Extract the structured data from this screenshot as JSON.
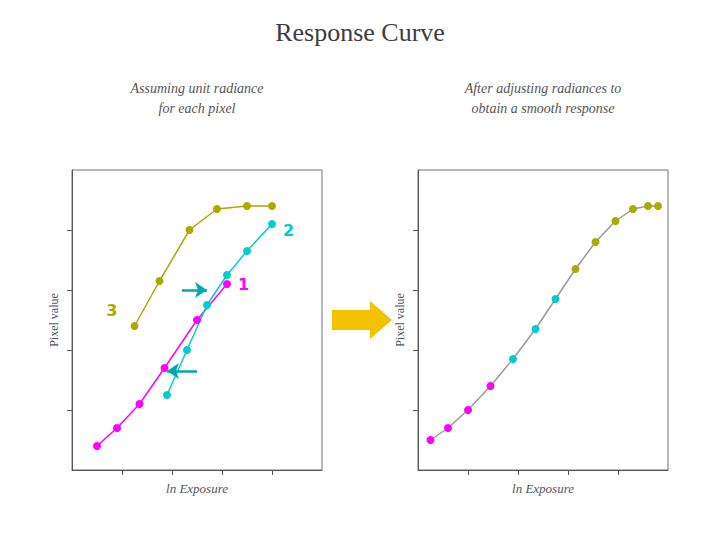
{
  "chart_data": [
    {
      "type": "line",
      "title": "Response Curve",
      "subtitle": "Assuming unit radiance\nfor each pixel",
      "x_label": "ln Exposure",
      "y_label": "Pixel value",
      "xlim": [
        0,
        1
      ],
      "ylim": [
        0,
        1
      ],
      "xticks": [
        0.2,
        0.4,
        0.6,
        0.8
      ],
      "yticks": [
        0.2,
        0.4,
        0.6,
        0.8
      ],
      "tick_labels": false,
      "grid": false,
      "series": [
        {
          "name": "1",
          "color": "#ff00ff",
          "x": [
            0.1,
            0.18,
            0.27,
            0.37,
            0.5,
            0.62
          ],
          "values": [
            0.08,
            0.14,
            0.22,
            0.34,
            0.5,
            0.62
          ]
        },
        {
          "name": "2",
          "color": "#00cccc",
          "x": [
            0.38,
            0.46,
            0.54,
            0.62,
            0.7,
            0.8
          ],
          "values": [
            0.25,
            0.4,
            0.55,
            0.65,
            0.73,
            0.82
          ]
        },
        {
          "name": "3",
          "color": "#aaaa00",
          "x": [
            0.25,
            0.35,
            0.47,
            0.58,
            0.7,
            0.8
          ],
          "values": [
            0.48,
            0.63,
            0.8,
            0.87,
            0.88,
            0.88
          ]
        }
      ],
      "arrows": [
        {
          "from": [
            0.44,
            0.6
          ],
          "to": [
            0.54,
            0.6
          ],
          "color": "#00aaaa"
        },
        {
          "from": [
            0.5,
            0.33
          ],
          "to": [
            0.38,
            0.33
          ],
          "color": "#00aaaa"
        }
      ]
    },
    {
      "type": "line",
      "subtitle": "After adjusting radiances to\nobtain a smooth response",
      "x_label": "ln Exposure",
      "y_label": "Pixel value",
      "xlim": [
        0,
        1
      ],
      "ylim": [
        0,
        1
      ],
      "xticks": [
        0.2,
        0.4,
        0.6,
        0.8
      ],
      "yticks": [
        0.2,
        0.4,
        0.6,
        0.8
      ],
      "tick_labels": false,
      "grid": false,
      "series": [
        {
          "x": [
            0.05,
            0.12,
            0.2,
            0.29,
            0.38,
            0.47,
            0.55,
            0.63,
            0.71,
            0.79,
            0.86,
            0.92,
            0.96
          ],
          "values": [
            0.1,
            0.14,
            0.2,
            0.28,
            0.37,
            0.47,
            0.57,
            0.67,
            0.76,
            0.83,
            0.87,
            0.88,
            0.88
          ],
          "colors": [
            "#ff00ff",
            "#ff00ff",
            "#ff00ff",
            "#ff00ff",
            "#00cccc",
            "#00cccc",
            "#00cccc",
            "#aaaa00",
            "#aaaa00",
            "#aaaa00",
            "#aaaa00",
            "#aaaa00",
            "#aaaa00"
          ]
        }
      ]
    }
  ]
}
